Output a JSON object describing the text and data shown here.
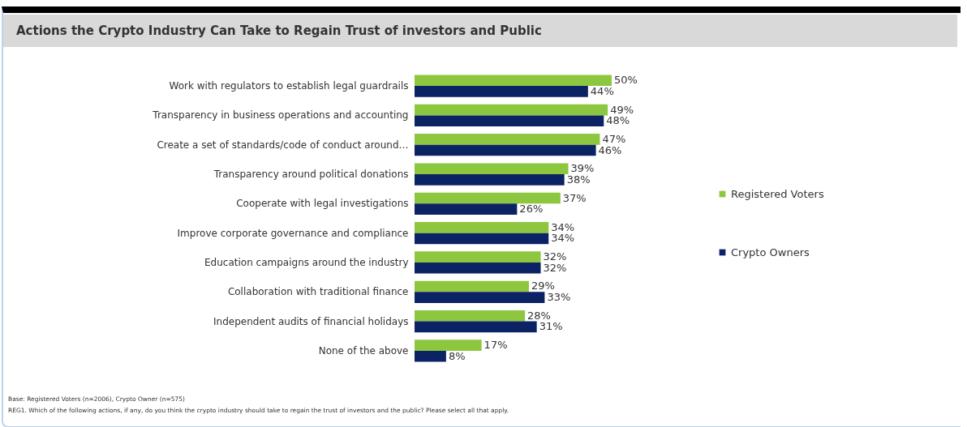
{
  "chart_data": {
    "type": "bar",
    "orientation": "horizontal",
    "title": "Actions the Crypto Industry Can Take to Regain Trust of investors and Public",
    "categories": [
      "Work with regulators to establish legal guardrails",
      "Transparency in business operations and accounting",
      "Create a set of standards/code of conduct around…",
      "Transparency around political donations",
      "Cooperate with legal investigations",
      "Improve corporate governance and compliance",
      "Education campaigns around the industry",
      "Collaboration with traditional finance",
      "Independent audits of financial holidays",
      "None of the above"
    ],
    "series": [
      {
        "name": "Registered Voters",
        "color": "#8dc63f",
        "values": [
          50,
          49,
          47,
          39,
          37,
          34,
          32,
          29,
          28,
          17
        ],
        "value_labels": [
          "50%",
          "49%",
          "47%",
          "39%",
          "37%",
          "34%",
          "32%",
          "29%",
          "28%",
          "17%"
        ]
      },
      {
        "name": "Crypto Owners",
        "color": "#0b2265",
        "values": [
          44,
          48,
          46,
          38,
          26,
          34,
          32,
          33,
          31,
          8
        ],
        "value_labels": [
          "44%",
          "48%",
          "46%",
          "38%",
          "26%",
          "34%",
          "32%",
          "33%",
          "31%",
          "8%"
        ]
      }
    ],
    "legend": "right",
    "tick_labels": "y",
    "annotations": [
      "Base: Registered Voters (n=2006), Crypto Owner (n=575)",
      "REG1. Which of the following actions, if any, do you think the crypto industry should take to regain the trust of investors and the public? Please select all that apply."
    ]
  }
}
